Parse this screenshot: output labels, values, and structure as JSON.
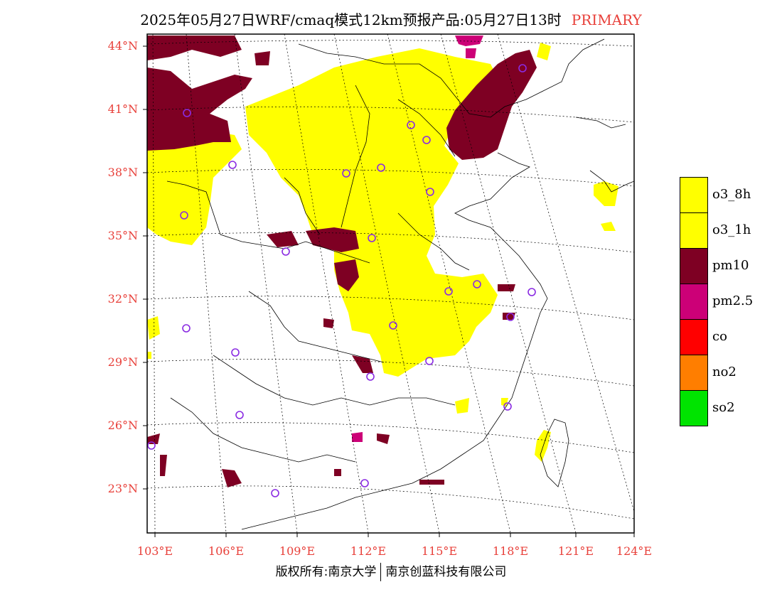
{
  "title": {
    "text": "2025年05月27日WRF/cmaq模式12km预报产品:05月27日13时",
    "tag": "PRIMARY",
    "tag_color": "#e8403a"
  },
  "lat_labels": [
    "44°N",
    "41°N",
    "38°N",
    "35°N",
    "32°N",
    "29°N",
    "26°N",
    "23°N"
  ],
  "lon_labels": [
    "103°E",
    "106°E",
    "109°E",
    "112°E",
    "115°E",
    "118°E",
    "121°E",
    "124°E"
  ],
  "legend": [
    {
      "label": "o3_8h",
      "color": "#ffff00"
    },
    {
      "label": "o3_1h",
      "color": "#ffff00"
    },
    {
      "label": "pm10",
      "color": "#7e0023"
    },
    {
      "label": "pm2.5",
      "color": "#cc0077"
    },
    {
      "label": "co",
      "color": "#ff0000"
    },
    {
      "label": "no2",
      "color": "#ff7e00"
    },
    {
      "label": "so2",
      "color": "#00e400"
    }
  ],
  "copyright": {
    "left": "版权所有:南京大学",
    "right": "南京创蓝科技有限公司"
  },
  "colors": {
    "o3": "#ffff00",
    "pm10": "#7e0023",
    "pm25": "#cc0077",
    "station": "#8a2be2",
    "axis_label": "#e8403a"
  },
  "icons": {
    "station_marker": "circle-icon"
  }
}
